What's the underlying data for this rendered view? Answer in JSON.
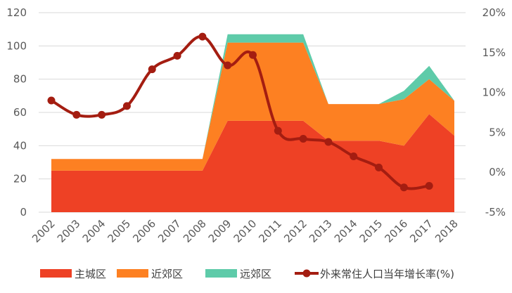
{
  "chart_data": {
    "type": "area",
    "categories": [
      "2002",
      "2003",
      "2004",
      "2005",
      "2006",
      "2007",
      "2008",
      "2009",
      "2010",
      "2011",
      "2012",
      "2013",
      "2014",
      "2015",
      "2016",
      "2017",
      "2018"
    ],
    "y_left": {
      "ticks": [
        "0",
        "20",
        "40",
        "60",
        "80",
        "100",
        "120"
      ],
      "range": [
        0,
        120
      ]
    },
    "y_right": {
      "ticks": [
        "-5%",
        "0%",
        "5%",
        "10%",
        "15%",
        "20%"
      ],
      "range": [
        -5,
        20
      ]
    },
    "grid": true,
    "legend_position": "bottom",
    "series": [
      {
        "name": "主城区",
        "type": "area",
        "stacked": true,
        "axis": "left",
        "color": "#EE4125",
        "values": [
          25,
          25,
          25,
          25,
          25,
          25,
          25,
          55,
          55,
          55,
          55,
          43,
          43,
          43,
          40,
          59,
          46
        ]
      },
      {
        "name": "近郊区",
        "type": "area",
        "stacked": true,
        "axis": "left",
        "color": "#FD8022",
        "values": [
          7,
          7,
          7,
          7,
          7,
          7,
          7,
          47,
          47,
          47,
          47,
          22,
          22,
          22,
          28,
          21,
          21
        ]
      },
      {
        "name": "远郊区",
        "type": "area",
        "stacked": true,
        "axis": "left",
        "color": "#5ECBA9",
        "values": [
          0,
          0,
          0,
          0,
          0,
          0,
          0,
          5,
          5,
          5,
          5,
          0,
          0,
          0,
          5,
          8,
          0
        ]
      },
      {
        "name": "外来常住人口当年增长率(%)",
        "type": "line",
        "axis": "right",
        "color": "#A41D11",
        "values": [
          9.0,
          7.2,
          7.2,
          8.3,
          12.9,
          14.6,
          17.0,
          13.4,
          14.7,
          5.2,
          4.2,
          3.8,
          2.0,
          0.6,
          -1.9,
          -1.7,
          null
        ]
      }
    ]
  }
}
